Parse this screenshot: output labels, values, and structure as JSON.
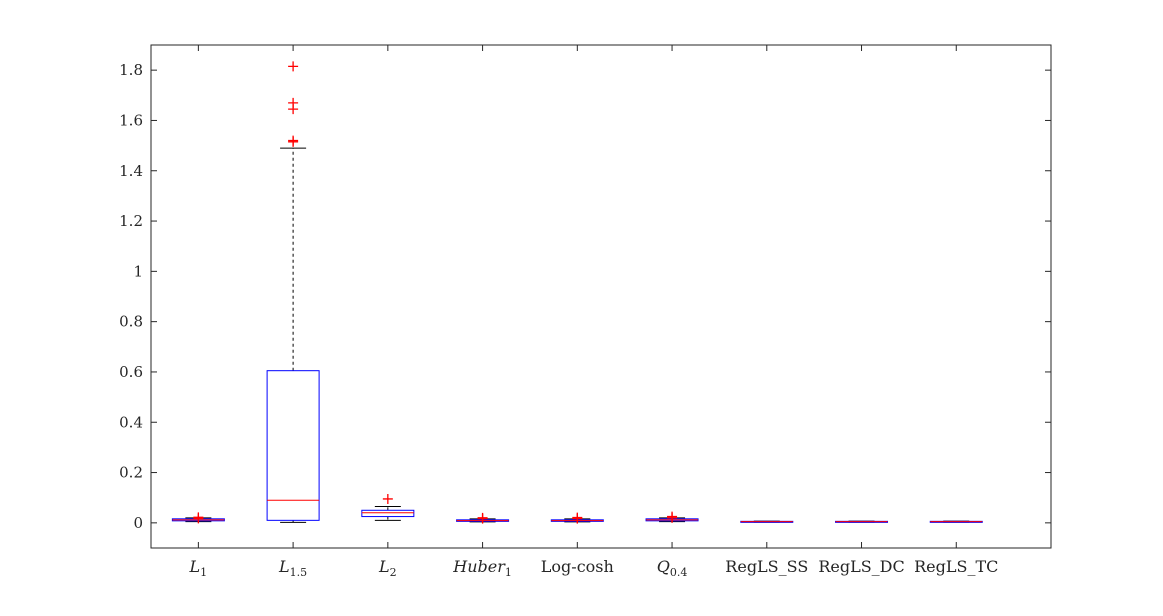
{
  "chart_data": {
    "type": "box",
    "title": "",
    "xlabel": "",
    "ylabel": "",
    "ylim": [
      -0.1,
      1.9
    ],
    "yticks": [
      0,
      0.2,
      0.4,
      0.6,
      0.8,
      1,
      1.2,
      1.4,
      1.6,
      1.8
    ],
    "ytick_labels": [
      "0",
      "0.2",
      "0.4",
      "0.6",
      "0.8",
      "1",
      "1.2",
      "1.4",
      "1.6",
      "1.8"
    ],
    "grid": false,
    "colors": {
      "box": "#0000ff",
      "median": "#ff0000",
      "whisker": "#000000",
      "outlier": "#ff0000"
    },
    "categories": [
      {
        "main": "L",
        "sub": "1",
        "italic": true
      },
      {
        "main": "L",
        "sub": "1.5",
        "italic": true
      },
      {
        "main": "L",
        "sub": "2",
        "italic": true
      },
      {
        "main": "Huber",
        "sub": "1",
        "italic": true
      },
      {
        "main": "Log-cosh",
        "sub": "",
        "italic": false
      },
      {
        "main": "Q",
        "sub": "0.4",
        "italic": true
      },
      {
        "main": "RegLS_SS",
        "sub": "",
        "italic": false
      },
      {
        "main": "RegLS_DC",
        "sub": "",
        "italic": false
      },
      {
        "main": "RegLS_TC",
        "sub": "",
        "italic": false
      }
    ],
    "boxes": [
      {
        "whisker_low": 0.005,
        "q1": 0.008,
        "median": 0.012,
        "q3": 0.016,
        "whisker_high": 0.02,
        "outliers": [
          0.022,
          0.018
        ]
      },
      {
        "whisker_low": 0.002,
        "q1": 0.01,
        "median": 0.09,
        "q3": 0.605,
        "whisker_high": 1.49,
        "outliers": [
          1.815,
          1.67,
          1.645,
          1.52,
          1.515
        ]
      },
      {
        "whisker_low": 0.01,
        "q1": 0.025,
        "median": 0.04,
        "q3": 0.05,
        "whisker_high": 0.065,
        "outliers": [
          0.095
        ]
      },
      {
        "whisker_low": 0.004,
        "q1": 0.006,
        "median": 0.009,
        "q3": 0.012,
        "whisker_high": 0.016,
        "outliers": [
          0.02,
          0.017
        ]
      },
      {
        "whisker_low": 0.004,
        "q1": 0.006,
        "median": 0.009,
        "q3": 0.012,
        "whisker_high": 0.016,
        "outliers": [
          0.021,
          0.017
        ]
      },
      {
        "whisker_low": 0.005,
        "q1": 0.008,
        "median": 0.012,
        "q3": 0.016,
        "whisker_high": 0.02,
        "outliers": [
          0.025,
          0.02
        ]
      },
      {
        "whisker_low": 0.003,
        "q1": 0.004,
        "median": 0.005,
        "q3": 0.006,
        "whisker_high": 0.007,
        "outliers": []
      },
      {
        "whisker_low": 0.003,
        "q1": 0.004,
        "median": 0.005,
        "q3": 0.006,
        "whisker_high": 0.007,
        "outliers": []
      },
      {
        "whisker_low": 0.003,
        "q1": 0.004,
        "median": 0.005,
        "q3": 0.006,
        "whisker_high": 0.007,
        "outliers": []
      }
    ]
  }
}
